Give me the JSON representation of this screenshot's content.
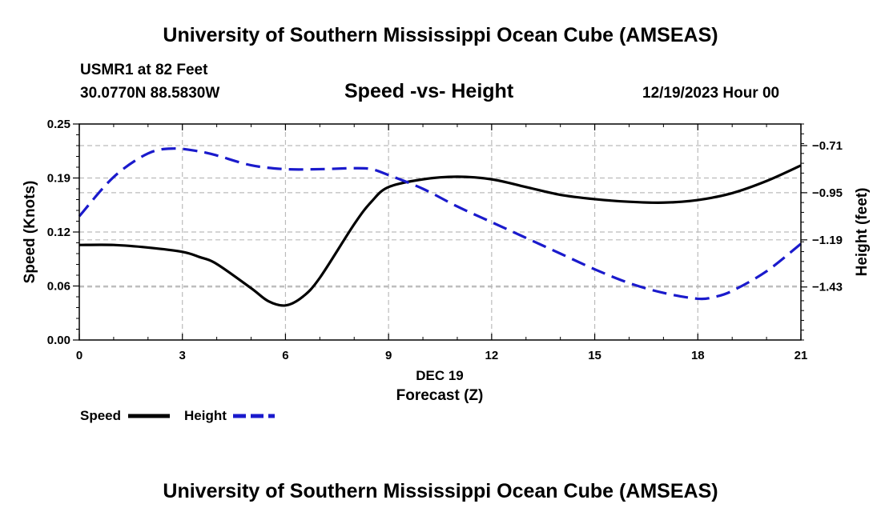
{
  "header": {
    "title": "University of Southern Mississippi Ocean Cube (AMSEAS)",
    "station": "USMR1 at 82 Feet",
    "coords": "30.0770N  88.5830W",
    "date": "12/19/2023 Hour 00"
  },
  "footer": {
    "title": "University of Southern Mississippi Ocean Cube (AMSEAS)"
  },
  "colors": {
    "speed": "#000000",
    "height": "#1a1acc",
    "grid": "#bbbbbb"
  },
  "chart_data": {
    "type": "line",
    "title": "Speed -vs- Height",
    "xlabel": "Forecast (Z)",
    "xlabel_date": "DEC 19",
    "ylabel": "Speed (Knots)",
    "ylabel_right": "Height (feet)",
    "xlim": [
      0,
      21
    ],
    "ylim": [
      0,
      0.25
    ],
    "ylim_right": [
      -1.7,
      -0.6
    ],
    "x_ticks": [
      0,
      3,
      6,
      9,
      12,
      15,
      18,
      21
    ],
    "x_tick_labels": [
      "0",
      "3",
      "6",
      "9",
      "12",
      "15",
      "18",
      "21"
    ],
    "y_ticks": [
      0,
      0.0625,
      0.125,
      0.1875,
      0.25
    ],
    "y_tick_labels": [
      "0.00",
      "0.06",
      "0.12",
      "0.19",
      "0.25"
    ],
    "y_right_ticks": [
      -1.43,
      -1.19,
      -0.95,
      -0.71
    ],
    "y_right_tick_labels": [
      "-1.43",
      "-1.19",
      "-0.95",
      "-0.71"
    ],
    "legend": [
      "Speed",
      "Height"
    ],
    "legend_position": "bottom-left",
    "grid": true,
    "series": [
      {
        "name": "Speed",
        "axis": "left",
        "style": "solid",
        "x": [
          0,
          1,
          2,
          3,
          3.5,
          4,
          5,
          5.5,
          6,
          6.5,
          7,
          8,
          8.5,
          9,
          10,
          11,
          12,
          13,
          14,
          15,
          16,
          17,
          18,
          19,
          20,
          21
        ],
        "values": [
          0.11,
          0.11,
          0.107,
          0.102,
          0.096,
          0.088,
          0.06,
          0.045,
          0.04,
          0.05,
          0.072,
          0.134,
          0.16,
          0.177,
          0.186,
          0.189,
          0.186,
          0.177,
          0.168,
          0.163,
          0.16,
          0.159,
          0.162,
          0.17,
          0.184,
          0.202
        ]
      },
      {
        "name": "Height",
        "axis": "right",
        "style": "dashed",
        "x": [
          0,
          1,
          2,
          2.75,
          3.5,
          4,
          5,
          6,
          7,
          8,
          8.5,
          9,
          10,
          11,
          12,
          13,
          14,
          15,
          16,
          17,
          18,
          18.5,
          19,
          20,
          21
        ],
        "values": [
          -1.07,
          -0.87,
          -0.75,
          -0.725,
          -0.74,
          -0.76,
          -0.81,
          -0.83,
          -0.83,
          -0.825,
          -0.83,
          -0.86,
          -0.93,
          -1.02,
          -1.1,
          -1.18,
          -1.26,
          -1.34,
          -1.41,
          -1.46,
          -1.49,
          -1.48,
          -1.45,
          -1.35,
          -1.21
        ]
      }
    ]
  }
}
